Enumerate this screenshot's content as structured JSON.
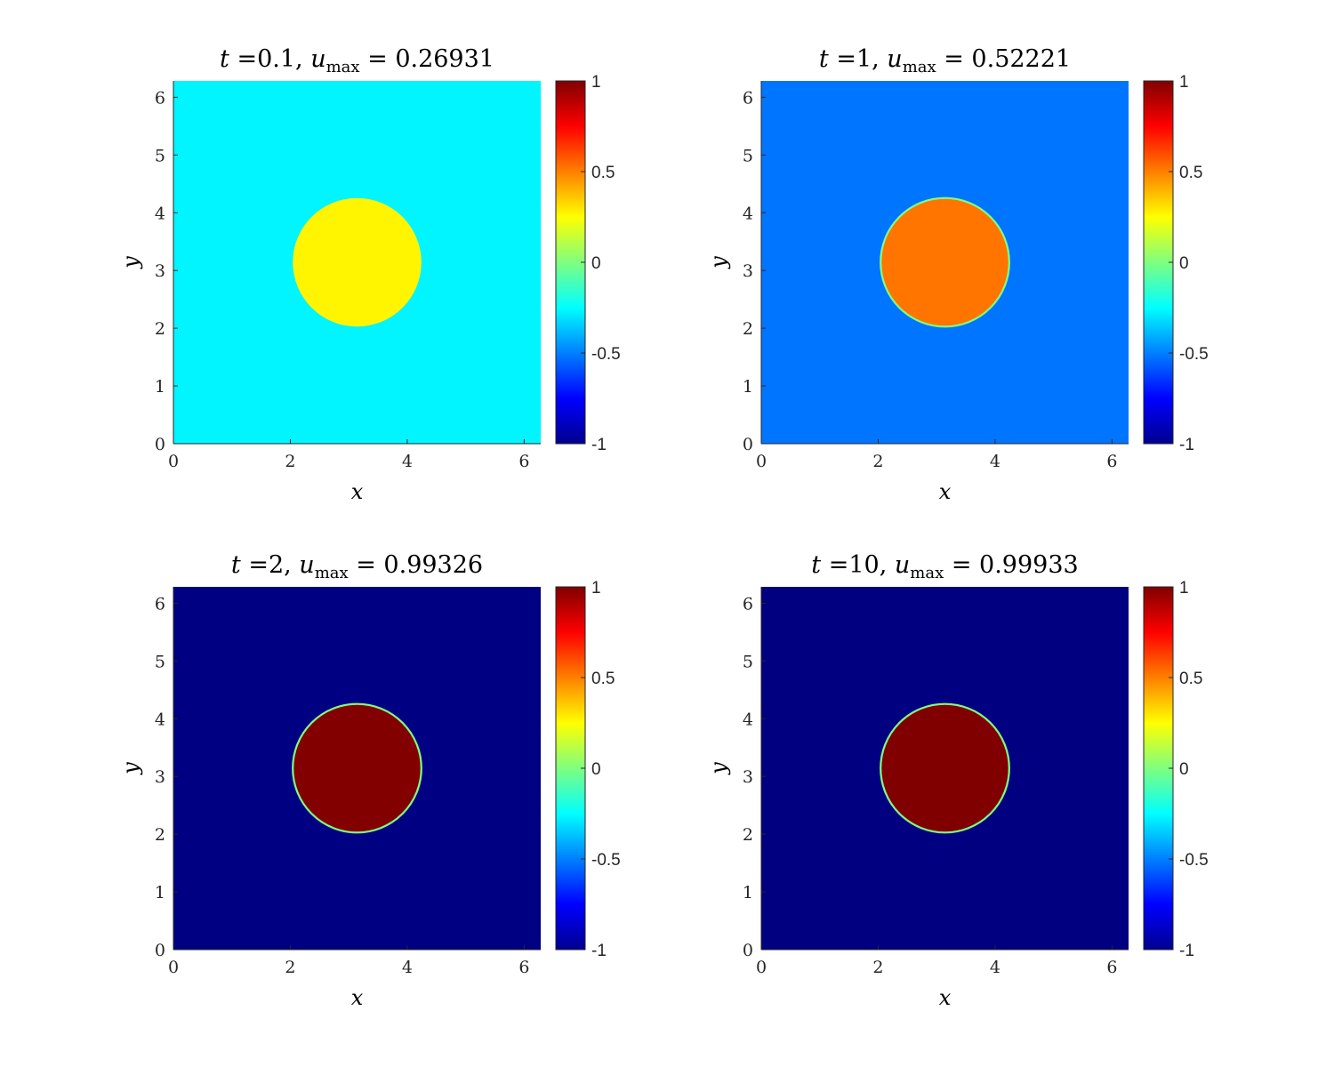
{
  "chart_data": [
    {
      "type": "heatmap",
      "title": {
        "t_label": "t",
        "t_value": "=0.1,",
        "u_label": "u",
        "u_sub": "max",
        "u_value": "= 0.26931"
      },
      "xlabel": "x",
      "ylabel": "y",
      "xlim": [
        0,
        6.2832
      ],
      "ylim": [
        0,
        6.2832
      ],
      "xticks": [
        "0",
        "2",
        "4",
        "6"
      ],
      "yticks": [
        "0",
        "1",
        "2",
        "3",
        "4",
        "5",
        "6"
      ],
      "field": {
        "background_value": -0.27,
        "circle_value": 0.27,
        "circle_center": [
          3.1416,
          3.1416
        ],
        "circle_radius": 1.1,
        "interface_value": null
      },
      "colorbar": {
        "range": [
          -1,
          1
        ],
        "ticks": [
          "-1",
          "-0.5",
          "0",
          "0.5",
          "1"
        ]
      }
    },
    {
      "type": "heatmap",
      "title": {
        "t_label": "t",
        "t_value": "=1,",
        "u_label": "u",
        "u_sub": "max",
        "u_value": "= 0.52221"
      },
      "xlabel": "x",
      "ylabel": "y",
      "xlim": [
        0,
        6.2832
      ],
      "ylim": [
        0,
        6.2832
      ],
      "xticks": [
        "0",
        "2",
        "4",
        "6"
      ],
      "yticks": [
        "0",
        "1",
        "2",
        "3",
        "4",
        "5",
        "6"
      ],
      "field": {
        "background_value": -0.52,
        "circle_value": 0.52,
        "circle_center": [
          3.1416,
          3.1416
        ],
        "circle_radius": 1.1,
        "interface_value": 0
      },
      "colorbar": {
        "range": [
          -1,
          1
        ],
        "ticks": [
          "-1",
          "-0.5",
          "0",
          "0.5",
          "1"
        ]
      }
    },
    {
      "type": "heatmap",
      "title": {
        "t_label": "t",
        "t_value": "=2,",
        "u_label": "u",
        "u_sub": "max",
        "u_value": "= 0.99326"
      },
      "xlabel": "x",
      "ylabel": "y",
      "xlim": [
        0,
        6.2832
      ],
      "ylim": [
        0,
        6.2832
      ],
      "xticks": [
        "0",
        "2",
        "4",
        "6"
      ],
      "yticks": [
        "0",
        "1",
        "2",
        "3",
        "4",
        "5",
        "6"
      ],
      "field": {
        "background_value": -0.993,
        "circle_value": 0.993,
        "circle_center": [
          3.1416,
          3.1416
        ],
        "circle_radius": 1.1,
        "interface_value": 0
      },
      "colorbar": {
        "range": [
          -1,
          1
        ],
        "ticks": [
          "-1",
          "-0.5",
          "0",
          "0.5",
          "1"
        ]
      }
    },
    {
      "type": "heatmap",
      "title": {
        "t_label": "t",
        "t_value": "=10,",
        "u_label": "u",
        "u_sub": "max",
        "u_value": "= 0.99933"
      },
      "xlabel": "x",
      "ylabel": "y",
      "xlim": [
        0,
        6.2832
      ],
      "ylim": [
        0,
        6.2832
      ],
      "xticks": [
        "0",
        "2",
        "4",
        "6"
      ],
      "yticks": [
        "0",
        "1",
        "2",
        "3",
        "4",
        "5",
        "6"
      ],
      "field": {
        "background_value": -0.999,
        "circle_value": 0.999,
        "circle_center": [
          3.1416,
          3.1416
        ],
        "circle_radius": 1.1,
        "interface_value": 0
      },
      "colorbar": {
        "range": [
          -1,
          1
        ],
        "ticks": [
          "-1",
          "-0.5",
          "0",
          "0.5",
          "1"
        ]
      }
    }
  ]
}
